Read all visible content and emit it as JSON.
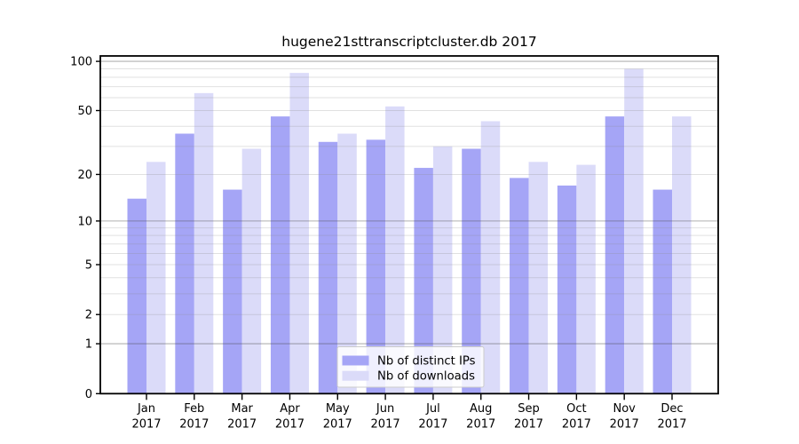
{
  "figure": {
    "background": "#ffffff",
    "text_color": "#000000"
  },
  "chart_data": {
    "type": "bar",
    "title": "hugene21sttranscriptcluster.db 2017",
    "categories": [
      "Jan",
      "Feb",
      "Mar",
      "Apr",
      "May",
      "Jun",
      "Jul",
      "Aug",
      "Sep",
      "Oct",
      "Nov",
      "Dec"
    ],
    "category_year": "2017",
    "series": [
      {
        "name": "Nb of distinct IPs",
        "color": "#a5a5f6",
        "values": [
          14,
          36,
          16,
          46,
          32,
          33,
          22,
          29,
          19,
          17,
          46,
          16
        ]
      },
      {
        "name": "Nb of downloads",
        "color": "#dbdbf9",
        "values": [
          24,
          64,
          29,
          85,
          36,
          53,
          30,
          43,
          24,
          23,
          90,
          46
        ]
      }
    ],
    "xlabel": "",
    "ylabel": "",
    "yscale": "log1p",
    "ylim": [
      0,
      108
    ],
    "yticks": [
      0,
      1,
      2,
      5,
      10,
      20,
      50,
      100
    ],
    "gridlines": {
      "major": [
        1,
        10,
        100
      ],
      "minor": [
        2,
        3,
        4,
        5,
        6,
        7,
        8,
        9,
        20,
        30,
        40,
        50,
        60,
        70,
        80,
        90
      ],
      "major_color": "#ababab",
      "minor_color": "#e3e3e3",
      "drawn_over_bars": true
    },
    "legend": {
      "position": "bottom-center",
      "entries": [
        "Nb of distinct IPs",
        "Nb of downloads"
      ],
      "background": "#ffffff",
      "border_color": "#cccccc"
    }
  }
}
